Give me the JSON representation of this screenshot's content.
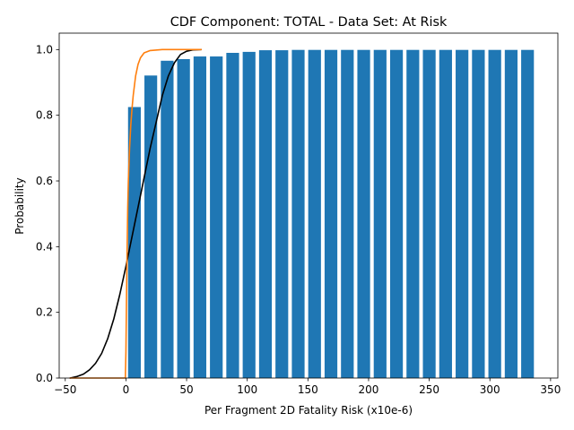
{
  "chart_data": {
    "type": "bar",
    "title": "CDF Component: TOTAL - Data Set: At Risk",
    "xlabel": "Per Fragment 2D Fatality Risk (x10e-6)",
    "ylabel": "Probability",
    "xlim": [
      -55,
      356
    ],
    "ylim": [
      0,
      1.05
    ],
    "xticks": [
      -50,
      0,
      50,
      100,
      150,
      200,
      250,
      300,
      350
    ],
    "yticks": [
      0.0,
      0.2,
      0.4,
      0.6,
      0.8,
      1.0
    ],
    "grid": false,
    "bar_color": "#1f77b4",
    "bar_width": 10.5,
    "bars": {
      "x": [
        7,
        20.5,
        34,
        47.5,
        61,
        74.5,
        88,
        101.5,
        115,
        128.5,
        142,
        155.5,
        169,
        182.5,
        196,
        209.5,
        223,
        236.5,
        250,
        263.5,
        277,
        290.5,
        304,
        317.5,
        331
      ],
      "values": [
        0.825,
        0.921,
        0.966,
        0.971,
        0.979,
        0.979,
        0.99,
        0.993,
        0.998,
        0.998,
        0.999,
        0.999,
        0.999,
        0.999,
        0.999,
        0.999,
        0.999,
        0.999,
        0.999,
        0.999,
        0.999,
        0.999,
        0.999,
        0.999,
        0.999
      ]
    },
    "series": [
      {
        "color": "#000000",
        "x": [
          -46,
          -40,
          -35,
          -30,
          -25,
          -20,
          -15,
          -10,
          -5,
          0,
          5,
          10,
          15,
          20,
          25,
          30,
          35,
          40,
          45,
          50,
          55,
          62
        ],
        "y": [
          0.0,
          0.005,
          0.012,
          0.025,
          0.045,
          0.075,
          0.12,
          0.18,
          0.255,
          0.34,
          0.43,
          0.52,
          0.61,
          0.7,
          0.78,
          0.86,
          0.92,
          0.96,
          0.985,
          0.995,
          0.999,
          1.0
        ]
      },
      {
        "color": "#ff7f0e",
        "x": [
          -46,
          -20,
          -5,
          -2,
          -0.5,
          0,
          0.5,
          1,
          1.5,
          2,
          3,
          4,
          5,
          6,
          7,
          8,
          10,
          12,
          15,
          20,
          30,
          62
        ],
        "y": [
          0.0,
          0.0,
          0.0,
          0.0,
          0.0,
          0.08,
          0.25,
          0.4,
          0.52,
          0.6,
          0.7,
          0.77,
          0.82,
          0.86,
          0.89,
          0.92,
          0.955,
          0.975,
          0.99,
          0.997,
          1.0,
          1.0
        ]
      }
    ]
  }
}
